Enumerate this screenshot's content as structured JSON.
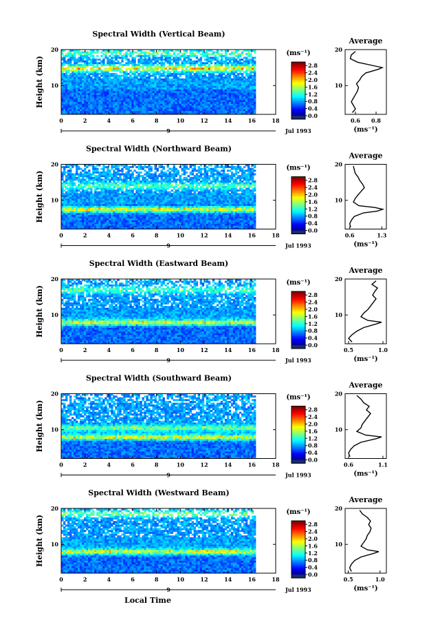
{
  "chart_data": [
    {
      "type": "heatmap",
      "title": "Spectral Width (Vertical Beam)",
      "ylabel": "Height (km)",
      "x_ticks": [
        "0",
        "2",
        "4",
        "6",
        "8",
        "10",
        "12",
        "14",
        "16",
        "18"
      ],
      "y_ticks": [
        "10",
        "20"
      ],
      "xlim": [
        0,
        18
      ],
      "ylim": [
        2,
        20
      ],
      "date_label": "9",
      "month_label": "Jul 1993",
      "colorbar": {
        "unit": "(ms⁻¹)",
        "ticks": [
          "2.8",
          "2.4",
          "2.0",
          "1.6",
          "1.2",
          "0.8",
          "0.4",
          "0.0"
        ],
        "range": [
          0,
          3
        ]
      },
      "features": [
        {
          "height_km": 14.8,
          "strength": 1.0
        },
        {
          "height_km": 19.0,
          "strength": 0.5
        }
      ],
      "average_profile": {
        "title": "Average",
        "xlabel": "(ms⁻¹)",
        "x_ticks": [
          "0.6",
          "0.8"
        ],
        "xlim": [
          0.5,
          0.9
        ],
        "y_ticks": [
          "10",
          "20"
        ],
        "ylim": [
          2,
          20
        ],
        "heights_km": [
          2.5,
          3.5,
          4.5,
          5.5,
          6.5,
          7.5,
          8.5,
          9.5,
          10.5,
          11.5,
          12.5,
          13.5,
          14.5,
          15.0,
          15.5,
          16.5,
          17.5,
          18.5,
          19.5
        ],
        "values": [
          0.57,
          0.6,
          0.58,
          0.56,
          0.58,
          0.6,
          0.62,
          0.63,
          0.61,
          0.64,
          0.66,
          0.7,
          0.82,
          0.86,
          0.78,
          0.62,
          0.55,
          0.56,
          0.6
        ]
      }
    },
    {
      "type": "heatmap",
      "title": "Spectral Width (Northward Beam)",
      "ylabel": "Height (km)",
      "x_ticks": [
        "0",
        "2",
        "4",
        "6",
        "8",
        "10",
        "12",
        "14",
        "16",
        "18"
      ],
      "y_ticks": [
        "10",
        "20"
      ],
      "xlim": [
        0,
        18
      ],
      "ylim": [
        2,
        20
      ],
      "date_label": "9",
      "month_label": "Jul 1993",
      "colorbar": {
        "unit": "(ms⁻¹)",
        "ticks": [
          "2.8",
          "2.4",
          "2.0",
          "1.6",
          "1.2",
          "0.8",
          "0.4",
          "0.0"
        ],
        "range": [
          0,
          3
        ]
      },
      "features": [
        {
          "height_km": 7.5,
          "strength": 1.0
        },
        {
          "height_km": 14.0,
          "strength": 0.5
        }
      ],
      "average_profile": {
        "title": "Average",
        "xlabel": "(ms⁻¹)",
        "x_ticks": [
          "0.6",
          "1.3"
        ],
        "xlim": [
          0.5,
          1.4
        ],
        "y_ticks": [
          "10",
          "20"
        ],
        "ylim": [
          2,
          20
        ],
        "heights_km": [
          2.5,
          3.5,
          4.5,
          5.5,
          6.5,
          7.0,
          7.5,
          8.0,
          8.5,
          9.5,
          10.5,
          11.5,
          12.5,
          13.5,
          14.5,
          15.5,
          16.5,
          17.5,
          18.5,
          19.5
        ],
        "values": [
          0.62,
          0.6,
          0.64,
          0.7,
          0.9,
          1.2,
          1.32,
          1.15,
          0.8,
          0.68,
          0.72,
          0.78,
          0.85,
          0.92,
          0.88,
          0.82,
          0.78,
          0.72,
          0.7,
          0.68
        ]
      }
    },
    {
      "type": "heatmap",
      "title": "Spectral Width (Eastward Beam)",
      "ylabel": "Height (km)",
      "x_ticks": [
        "0",
        "2",
        "4",
        "6",
        "8",
        "10",
        "12",
        "14",
        "16",
        "18"
      ],
      "y_ticks": [
        "10",
        "20"
      ],
      "xlim": [
        0,
        18
      ],
      "ylim": [
        2,
        20
      ],
      "date_label": "9",
      "month_label": "Jul 1993",
      "colorbar": {
        "unit": "(ms⁻¹)",
        "ticks": [
          "2.8",
          "2.4",
          "2.0",
          "1.6",
          "1.2",
          "0.8",
          "0.4",
          "0.0"
        ],
        "range": [
          0,
          3
        ]
      },
      "features": [
        {
          "height_km": 8.0,
          "strength": 1.0
        },
        {
          "height_km": 17.0,
          "strength": 0.5
        }
      ],
      "average_profile": {
        "title": "Average",
        "xlabel": "(ms⁻¹)",
        "x_ticks": [
          "0.5",
          "1.0"
        ],
        "xlim": [
          0.45,
          1.05
        ],
        "y_ticks": [
          "10",
          "20"
        ],
        "ylim": [
          2,
          20
        ],
        "heights_km": [
          2.5,
          3.5,
          4.5,
          5.5,
          6.5,
          7.5,
          8.0,
          8.5,
          9.5,
          10.5,
          11.5,
          12.5,
          13.5,
          14.5,
          15.5,
          16.5,
          17.5,
          18.5,
          19.5
        ],
        "values": [
          0.55,
          0.5,
          0.55,
          0.62,
          0.72,
          0.9,
          0.98,
          0.78,
          0.68,
          0.72,
          0.78,
          0.82,
          0.86,
          0.9,
          0.85,
          0.88,
          0.92,
          0.84,
          0.9
        ]
      }
    },
    {
      "type": "heatmap",
      "title": "Spectral Width (Southward Beam)",
      "ylabel": "Height (km)",
      "x_ticks": [
        "0",
        "2",
        "4",
        "6",
        "8",
        "10",
        "12",
        "14",
        "16",
        "18"
      ],
      "y_ticks": [
        "10",
        "20"
      ],
      "xlim": [
        0,
        18
      ],
      "ylim": [
        2,
        20
      ],
      "date_label": "9",
      "month_label": "Jul 1993",
      "colorbar": {
        "unit": "(ms⁻¹)",
        "ticks": [
          "2.8",
          "2.4",
          "2.0",
          "1.6",
          "1.2",
          "0.8",
          "0.4",
          "0.0"
        ],
        "range": [
          0,
          3
        ]
      },
      "features": [
        {
          "height_km": 8.0,
          "strength": 1.0
        },
        {
          "height_km": 10.5,
          "strength": 0.6
        }
      ],
      "average_profile": {
        "title": "Average",
        "xlabel": "(ms⁻¹)",
        "x_ticks": [
          "0.6",
          "1.1"
        ],
        "xlim": [
          0.55,
          1.15
        ],
        "y_ticks": [
          "10",
          "20"
        ],
        "ylim": [
          2,
          20
        ],
        "heights_km": [
          2.5,
          3.5,
          4.5,
          5.5,
          6.5,
          7.5,
          8.0,
          8.5,
          9.5,
          10.5,
          11.5,
          12.5,
          13.5,
          14.5,
          15.5,
          16.5,
          17.5,
          18.5,
          19.5
        ],
        "values": [
          0.62,
          0.6,
          0.63,
          0.68,
          0.78,
          1.0,
          1.08,
          0.85,
          0.72,
          0.78,
          0.8,
          0.84,
          0.88,
          0.92,
          0.86,
          0.9,
          0.82,
          0.78,
          0.72
        ]
      }
    },
    {
      "type": "heatmap",
      "title": "Spectral Width (Westward Beam)",
      "ylabel": "Height (km)",
      "xlabel": "Local Time",
      "x_ticks": [
        "0",
        "2",
        "4",
        "6",
        "8",
        "10",
        "12",
        "14",
        "16",
        "18"
      ],
      "y_ticks": [
        "10",
        "20"
      ],
      "xlim": [
        0,
        18
      ],
      "ylim": [
        2,
        20
      ],
      "date_label": "9",
      "month_label": "Jul 1993",
      "colorbar": {
        "unit": "(ms⁻¹)",
        "ticks": [
          "2.8",
          "2.4",
          "2.0",
          "1.6",
          "1.2",
          "0.8",
          "0.4",
          "0.0"
        ],
        "range": [
          0,
          3
        ]
      },
      "features": [
        {
          "height_km": 8.0,
          "strength": 1.0
        },
        {
          "height_km": 18.5,
          "strength": 0.6
        }
      ],
      "average_profile": {
        "title": "Average",
        "xlabel": "(ms⁻¹)",
        "x_ticks": [
          "0.5",
          "1.0"
        ],
        "xlim": [
          0.45,
          1.1
        ],
        "y_ticks": [
          "10",
          "20"
        ],
        "ylim": [
          2,
          20
        ],
        "heights_km": [
          2.5,
          3.5,
          4.5,
          5.5,
          6.5,
          7.5,
          8.0,
          8.5,
          9.5,
          10.5,
          11.5,
          12.5,
          13.5,
          14.5,
          15.5,
          16.5,
          17.5,
          18.5,
          19.5
        ],
        "values": [
          0.55,
          0.52,
          0.55,
          0.6,
          0.7,
          0.9,
          0.98,
          0.8,
          0.7,
          0.74,
          0.78,
          0.8,
          0.84,
          0.86,
          0.82,
          0.85,
          0.8,
          0.72,
          0.68
        ]
      }
    }
  ]
}
